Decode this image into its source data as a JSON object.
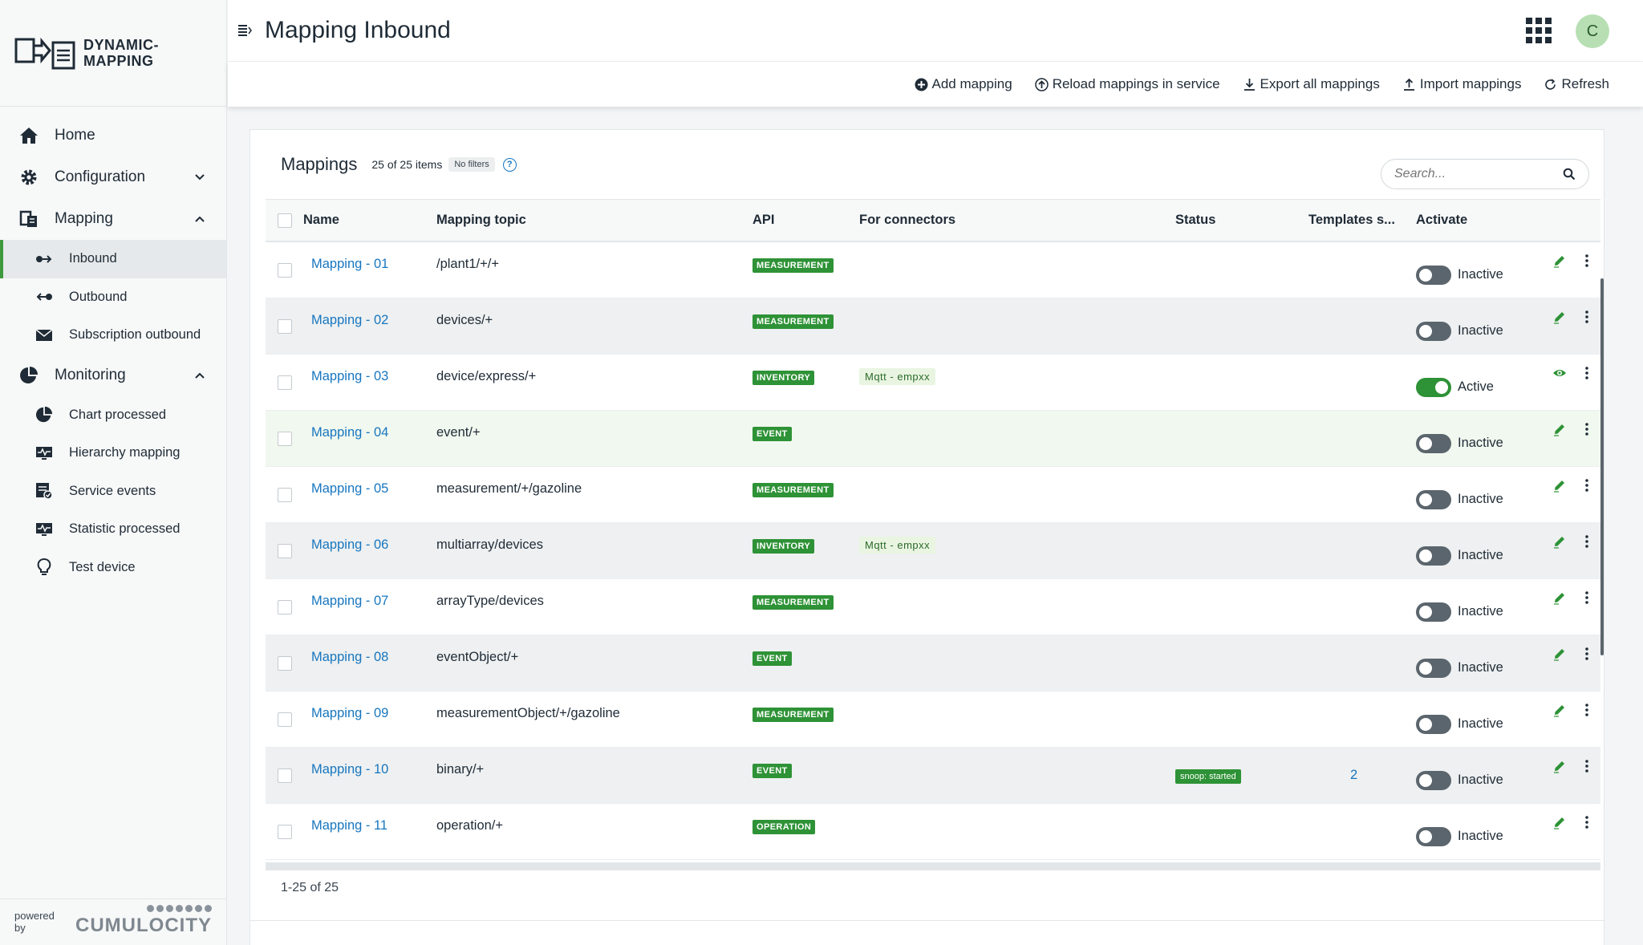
{
  "brand": {
    "line1": "DYNAMIC-",
    "line2": "MAPPING"
  },
  "sidebar": {
    "items": [
      {
        "label": "Home",
        "icon": "home-icon"
      },
      {
        "label": "Configuration",
        "icon": "gear-icon",
        "expanded": false
      },
      {
        "label": "Mapping",
        "icon": "mapping-icon",
        "expanded": true
      },
      {
        "label": "Monitoring",
        "icon": "pie-chart-icon",
        "expanded": true
      }
    ],
    "mapping_sub": [
      {
        "label": "Inbound",
        "icon": "inbound-icon",
        "active": true
      },
      {
        "label": "Outbound",
        "icon": "outbound-icon"
      },
      {
        "label": "Subscription outbound",
        "icon": "envelope-icon"
      }
    ],
    "monitoring_sub": [
      {
        "label": "Chart processed",
        "icon": "pie-chart-icon"
      },
      {
        "label": "Hierarchy mapping",
        "icon": "monitor-icon"
      },
      {
        "label": "Service events",
        "icon": "service-events-icon"
      },
      {
        "label": "Statistic processed",
        "icon": "monitor-icon"
      },
      {
        "label": "Test device",
        "icon": "lightbulb-icon"
      }
    ],
    "powered_by": "powered by",
    "cumulocity": "CUMULOCITY"
  },
  "header": {
    "title": "Mapping Inbound",
    "avatar_letter": "C"
  },
  "actions": {
    "add": "Add mapping",
    "reload": "Reload mappings in service",
    "export": "Export all mappings",
    "import": "Import mappings",
    "refresh": "Refresh"
  },
  "card": {
    "title": "Mappings",
    "count": "25 of 25 items",
    "filters": "No filters",
    "help": "?",
    "search_placeholder": "Search...",
    "footer": "1-25 of 25"
  },
  "columns": {
    "name": "Name",
    "topic": "Mapping topic",
    "api": "API",
    "connectors": "For connectors",
    "status": "Status",
    "templates": "Templates s...",
    "activate": "Activate"
  },
  "rows": [
    {
      "name": "Mapping - 01",
      "topic": "/plant1/+/+",
      "api": "MEASUREMENT",
      "connector": "",
      "status": "",
      "templates": "",
      "state": "Inactive",
      "active": false,
      "tool": "edit"
    },
    {
      "name": "Mapping - 02",
      "topic": "devices/+",
      "api": "MEASUREMENT",
      "connector": "",
      "status": "",
      "templates": "",
      "state": "Inactive",
      "active": false,
      "tool": "edit"
    },
    {
      "name": "Mapping - 03",
      "topic": "device/express/+",
      "api": "INVENTORY",
      "connector": "Mqtt - empxx",
      "status": "",
      "templates": "",
      "state": "Active",
      "active": true,
      "tool": "view"
    },
    {
      "name": "Mapping - 04",
      "topic": "event/+",
      "api": "EVENT",
      "connector": "",
      "status": "",
      "templates": "",
      "state": "Inactive",
      "active": false,
      "tool": "edit"
    },
    {
      "name": "Mapping - 05",
      "topic": "measurement/+/gazoline",
      "api": "MEASUREMENT",
      "connector": "",
      "status": "",
      "templates": "",
      "state": "Inactive",
      "active": false,
      "tool": "edit"
    },
    {
      "name": "Mapping - 06",
      "topic": "multiarray/devices",
      "api": "INVENTORY",
      "connector": "Mqtt - empxx",
      "status": "",
      "templates": "",
      "state": "Inactive",
      "active": false,
      "tool": "edit"
    },
    {
      "name": "Mapping - 07",
      "topic": "arrayType/devices",
      "api": "MEASUREMENT",
      "connector": "",
      "status": "",
      "templates": "",
      "state": "Inactive",
      "active": false,
      "tool": "edit"
    },
    {
      "name": "Mapping - 08",
      "topic": "eventObject/+",
      "api": "EVENT",
      "connector": "",
      "status": "",
      "templates": "",
      "state": "Inactive",
      "active": false,
      "tool": "edit"
    },
    {
      "name": "Mapping - 09",
      "topic": "measurementObject/+/gazoline",
      "api": "MEASUREMENT",
      "connector": "",
      "status": "",
      "templates": "",
      "state": "Inactive",
      "active": false,
      "tool": "edit"
    },
    {
      "name": "Mapping - 10",
      "topic": "binary/+",
      "api": "EVENT",
      "connector": "",
      "status": "snoop: started",
      "templates": "2",
      "state": "Inactive",
      "active": false,
      "tool": "edit"
    },
    {
      "name": "Mapping - 11",
      "topic": "operation/+",
      "api": "OPERATION",
      "connector": "",
      "status": "",
      "templates": "",
      "state": "Inactive",
      "active": false,
      "tool": "edit"
    }
  ]
}
